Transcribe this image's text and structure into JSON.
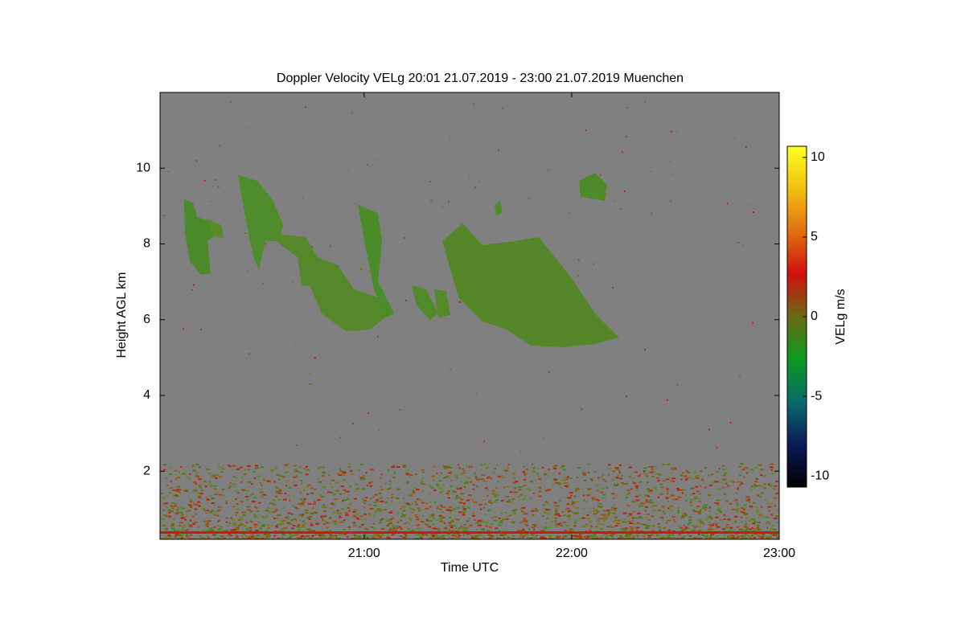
{
  "chart_data": {
    "type": "heatmap",
    "title": "Doppler Velocity VELg   20:01 21.07.2019 - 23:00 21.07.2019 Muenchen",
    "x_label": "Time UTC",
    "y_label": "Height AGL km",
    "xlim": [
      "20:01",
      "23:00"
    ],
    "xticks": [
      "21:00",
      "22:00",
      "23:00"
    ],
    "ylim": [
      0.2,
      12
    ],
    "yticks": [
      2,
      4,
      6,
      8,
      10
    ],
    "colorbar_label": "VELg m/s",
    "clim": [
      -10.7,
      10.7
    ],
    "cticks": [
      -10,
      -5,
      0,
      5,
      10
    ],
    "colormap": [
      "#000000",
      "#0a1a5a",
      "#0a6a6a",
      "#0a9a20",
      "#6a6a10",
      "#d01010",
      "#e07010",
      "#f0c010",
      "#ffff20"
    ],
    "background": "#808080"
  }
}
